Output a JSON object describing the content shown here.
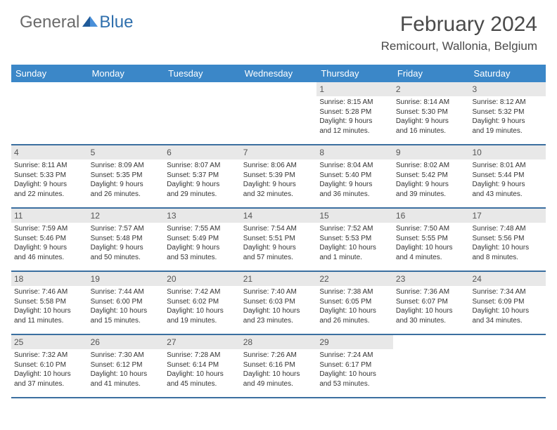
{
  "logo": {
    "general": "General",
    "blue": "Blue"
  },
  "title": "February 2024",
  "location": "Remicourt, Wallonia, Belgium",
  "colors": {
    "header_bg": "#3b87c8",
    "header_text": "#ffffff",
    "daynum_bg": "#e8e8e8",
    "border": "#3b6fa0",
    "logo_blue": "#2f6fad",
    "logo_gray": "#6a6a6a"
  },
  "day_headers": [
    "Sunday",
    "Monday",
    "Tuesday",
    "Wednesday",
    "Thursday",
    "Friday",
    "Saturday"
  ],
  "weeks": [
    [
      {
        "empty": true
      },
      {
        "empty": true
      },
      {
        "empty": true
      },
      {
        "empty": true
      },
      {
        "num": "1",
        "sunrise": "Sunrise: 8:15 AM",
        "sunset": "Sunset: 5:28 PM",
        "daylight1": "Daylight: 9 hours",
        "daylight2": "and 12 minutes."
      },
      {
        "num": "2",
        "sunrise": "Sunrise: 8:14 AM",
        "sunset": "Sunset: 5:30 PM",
        "daylight1": "Daylight: 9 hours",
        "daylight2": "and 16 minutes."
      },
      {
        "num": "3",
        "sunrise": "Sunrise: 8:12 AM",
        "sunset": "Sunset: 5:32 PM",
        "daylight1": "Daylight: 9 hours",
        "daylight2": "and 19 minutes."
      }
    ],
    [
      {
        "num": "4",
        "sunrise": "Sunrise: 8:11 AM",
        "sunset": "Sunset: 5:33 PM",
        "daylight1": "Daylight: 9 hours",
        "daylight2": "and 22 minutes."
      },
      {
        "num": "5",
        "sunrise": "Sunrise: 8:09 AM",
        "sunset": "Sunset: 5:35 PM",
        "daylight1": "Daylight: 9 hours",
        "daylight2": "and 26 minutes."
      },
      {
        "num": "6",
        "sunrise": "Sunrise: 8:07 AM",
        "sunset": "Sunset: 5:37 PM",
        "daylight1": "Daylight: 9 hours",
        "daylight2": "and 29 minutes."
      },
      {
        "num": "7",
        "sunrise": "Sunrise: 8:06 AM",
        "sunset": "Sunset: 5:39 PM",
        "daylight1": "Daylight: 9 hours",
        "daylight2": "and 32 minutes."
      },
      {
        "num": "8",
        "sunrise": "Sunrise: 8:04 AM",
        "sunset": "Sunset: 5:40 PM",
        "daylight1": "Daylight: 9 hours",
        "daylight2": "and 36 minutes."
      },
      {
        "num": "9",
        "sunrise": "Sunrise: 8:02 AM",
        "sunset": "Sunset: 5:42 PM",
        "daylight1": "Daylight: 9 hours",
        "daylight2": "and 39 minutes."
      },
      {
        "num": "10",
        "sunrise": "Sunrise: 8:01 AM",
        "sunset": "Sunset: 5:44 PM",
        "daylight1": "Daylight: 9 hours",
        "daylight2": "and 43 minutes."
      }
    ],
    [
      {
        "num": "11",
        "sunrise": "Sunrise: 7:59 AM",
        "sunset": "Sunset: 5:46 PM",
        "daylight1": "Daylight: 9 hours",
        "daylight2": "and 46 minutes."
      },
      {
        "num": "12",
        "sunrise": "Sunrise: 7:57 AM",
        "sunset": "Sunset: 5:48 PM",
        "daylight1": "Daylight: 9 hours",
        "daylight2": "and 50 minutes."
      },
      {
        "num": "13",
        "sunrise": "Sunrise: 7:55 AM",
        "sunset": "Sunset: 5:49 PM",
        "daylight1": "Daylight: 9 hours",
        "daylight2": "and 53 minutes."
      },
      {
        "num": "14",
        "sunrise": "Sunrise: 7:54 AM",
        "sunset": "Sunset: 5:51 PM",
        "daylight1": "Daylight: 9 hours",
        "daylight2": "and 57 minutes."
      },
      {
        "num": "15",
        "sunrise": "Sunrise: 7:52 AM",
        "sunset": "Sunset: 5:53 PM",
        "daylight1": "Daylight: 10 hours",
        "daylight2": "and 1 minute."
      },
      {
        "num": "16",
        "sunrise": "Sunrise: 7:50 AM",
        "sunset": "Sunset: 5:55 PM",
        "daylight1": "Daylight: 10 hours",
        "daylight2": "and 4 minutes."
      },
      {
        "num": "17",
        "sunrise": "Sunrise: 7:48 AM",
        "sunset": "Sunset: 5:56 PM",
        "daylight1": "Daylight: 10 hours",
        "daylight2": "and 8 minutes."
      }
    ],
    [
      {
        "num": "18",
        "sunrise": "Sunrise: 7:46 AM",
        "sunset": "Sunset: 5:58 PM",
        "daylight1": "Daylight: 10 hours",
        "daylight2": "and 11 minutes."
      },
      {
        "num": "19",
        "sunrise": "Sunrise: 7:44 AM",
        "sunset": "Sunset: 6:00 PM",
        "daylight1": "Daylight: 10 hours",
        "daylight2": "and 15 minutes."
      },
      {
        "num": "20",
        "sunrise": "Sunrise: 7:42 AM",
        "sunset": "Sunset: 6:02 PM",
        "daylight1": "Daylight: 10 hours",
        "daylight2": "and 19 minutes."
      },
      {
        "num": "21",
        "sunrise": "Sunrise: 7:40 AM",
        "sunset": "Sunset: 6:03 PM",
        "daylight1": "Daylight: 10 hours",
        "daylight2": "and 23 minutes."
      },
      {
        "num": "22",
        "sunrise": "Sunrise: 7:38 AM",
        "sunset": "Sunset: 6:05 PM",
        "daylight1": "Daylight: 10 hours",
        "daylight2": "and 26 minutes."
      },
      {
        "num": "23",
        "sunrise": "Sunrise: 7:36 AM",
        "sunset": "Sunset: 6:07 PM",
        "daylight1": "Daylight: 10 hours",
        "daylight2": "and 30 minutes."
      },
      {
        "num": "24",
        "sunrise": "Sunrise: 7:34 AM",
        "sunset": "Sunset: 6:09 PM",
        "daylight1": "Daylight: 10 hours",
        "daylight2": "and 34 minutes."
      }
    ],
    [
      {
        "num": "25",
        "sunrise": "Sunrise: 7:32 AM",
        "sunset": "Sunset: 6:10 PM",
        "daylight1": "Daylight: 10 hours",
        "daylight2": "and 37 minutes."
      },
      {
        "num": "26",
        "sunrise": "Sunrise: 7:30 AM",
        "sunset": "Sunset: 6:12 PM",
        "daylight1": "Daylight: 10 hours",
        "daylight2": "and 41 minutes."
      },
      {
        "num": "27",
        "sunrise": "Sunrise: 7:28 AM",
        "sunset": "Sunset: 6:14 PM",
        "daylight1": "Daylight: 10 hours",
        "daylight2": "and 45 minutes."
      },
      {
        "num": "28",
        "sunrise": "Sunrise: 7:26 AM",
        "sunset": "Sunset: 6:16 PM",
        "daylight1": "Daylight: 10 hours",
        "daylight2": "and 49 minutes."
      },
      {
        "num": "29",
        "sunrise": "Sunrise: 7:24 AM",
        "sunset": "Sunset: 6:17 PM",
        "daylight1": "Daylight: 10 hours",
        "daylight2": "and 53 minutes."
      },
      {
        "empty": true
      },
      {
        "empty": true
      }
    ]
  ]
}
